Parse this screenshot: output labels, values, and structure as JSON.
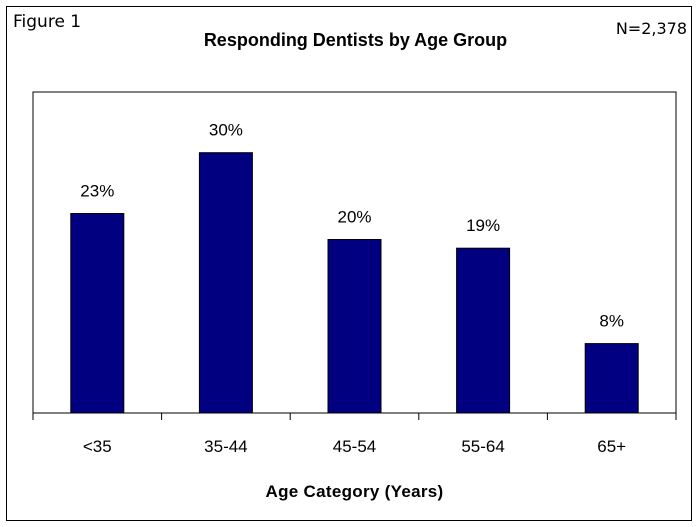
{
  "figure_label": "Figure 1",
  "sample_size": "N=2,378",
  "chart_data": {
    "type": "bar",
    "title": "Responding Dentists by Age Group",
    "xlabel": "Age Category (Years)",
    "ylabel": "",
    "categories": [
      "<35",
      "35-44",
      "45-54",
      "55-64",
      "65+"
    ],
    "values": [
      23,
      30,
      20,
      19,
      8
    ],
    "value_labels": [
      "23%",
      "30%",
      "20%",
      "19%",
      "8%"
    ],
    "unit": "%",
    "ylim": [
      0,
      37
    ],
    "bar_color": "#000080",
    "grid": false,
    "legend": "none"
  }
}
